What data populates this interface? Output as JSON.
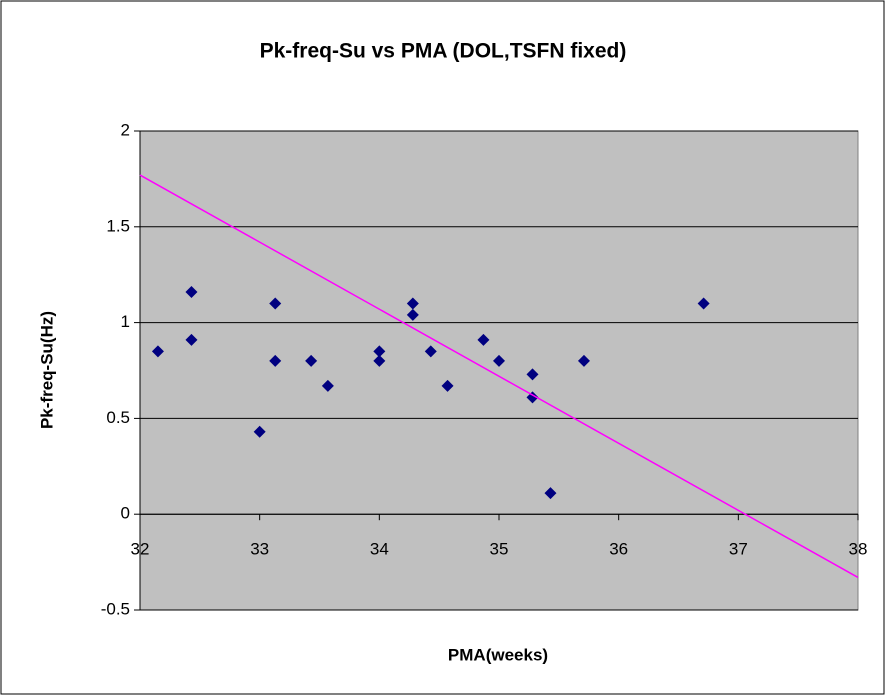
{
  "chart_data": {
    "type": "scatter",
    "title": "Pk-freq-Su vs PMA (DOL,TSFN fixed)",
    "x_label": "PMA(weeks)",
    "y_label": "Pk-freq-Su(Hz)",
    "xlim": [
      32,
      38
    ],
    "ylim": [
      -0.5,
      2
    ],
    "xticks": [
      32,
      33,
      34,
      35,
      36,
      37,
      38
    ],
    "yticks": [
      -0.5,
      0,
      0.5,
      1,
      1.5,
      2
    ],
    "grid": true,
    "series": [
      {
        "color": "#000080",
        "x": [
          32.15,
          32.43,
          32.43,
          33.0,
          33.13,
          33.13,
          33.43,
          33.57,
          34.0,
          34.0,
          34.28,
          34.28,
          34.43,
          34.57,
          34.87,
          35.0,
          35.28,
          35.28,
          35.43,
          35.71,
          36.71
        ],
        "values": [
          0.85,
          1.16,
          0.91,
          0.43,
          1.1,
          0.8,
          0.8,
          0.67,
          0.85,
          0.8,
          1.1,
          1.04,
          0.85,
          0.67,
          0.91,
          0.8,
          0.73,
          0.61,
          0.11,
          0.8,
          1.1
        ]
      }
    ],
    "trendline": {
      "color": "#ff00ff",
      "x": [
        32,
        38
      ],
      "values": [
        1.77,
        -0.33
      ]
    }
  }
}
